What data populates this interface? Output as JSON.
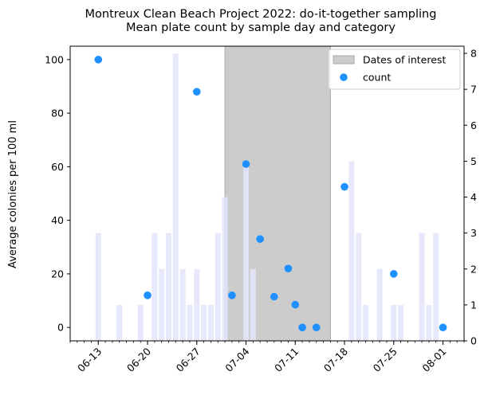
{
  "chart_data": {
    "type": "scatter",
    "title": "Montreux Clean Beach Project 2022: do-it-together sampling",
    "subtitle": "Mean plate count by sample day and category",
    "ylabel": "Average colonies per 100 ml",
    "xlabel": "",
    "x_tick_labels": [
      "06-13",
      "06-20",
      "06-27",
      "07-04",
      "07-11",
      "07-18",
      "07-25",
      "08-01"
    ],
    "x_tick_dates": [
      "2022-06-13",
      "2022-06-20",
      "2022-06-27",
      "2022-07-04",
      "2022-07-11",
      "2022-07-18",
      "2022-07-25",
      "2022-08-01"
    ],
    "xlim": [
      "2022-06-09",
      "2022-08-04"
    ],
    "ylim": [
      -5,
      105
    ],
    "y_ticks": [
      0,
      20,
      40,
      60,
      80,
      100
    ],
    "y2lim": [
      0,
      8.2
    ],
    "y2_ticks": [
      0,
      1,
      2,
      3,
      4,
      5,
      6,
      7,
      8
    ],
    "shaded_region": {
      "label": "Dates of interest",
      "start": "2022-07-01",
      "end": "2022-07-16",
      "color": "#cccccc"
    },
    "legend_position": "top-right",
    "legend_entries": [
      "Dates of interest",
      "count"
    ],
    "series": [
      {
        "name": "count",
        "kind": "scatter",
        "axis": "left",
        "color": "#1e90ff",
        "points": [
          {
            "x": "2022-06-13",
            "y": 100
          },
          {
            "x": "2022-06-20",
            "y": 12
          },
          {
            "x": "2022-06-27",
            "y": 88
          },
          {
            "x": "2022-07-02",
            "y": 12
          },
          {
            "x": "2022-07-04",
            "y": 61
          },
          {
            "x": "2022-07-06",
            "y": 33
          },
          {
            "x": "2022-07-08",
            "y": 11.5
          },
          {
            "x": "2022-07-10",
            "y": 22
          },
          {
            "x": "2022-07-11",
            "y": 8.5
          },
          {
            "x": "2022-07-12",
            "y": 0
          },
          {
            "x": "2022-07-14",
            "y": 0
          },
          {
            "x": "2022-07-18",
            "y": 52.5
          },
          {
            "x": "2022-07-25",
            "y": 20
          },
          {
            "x": "2022-08-01",
            "y": 0
          }
        ]
      },
      {
        "name": "",
        "kind": "bar",
        "axis": "right",
        "color": "#e4e4fb",
        "points": [
          {
            "x": "2022-06-13",
            "y": 3
          },
          {
            "x": "2022-06-16",
            "y": 1
          },
          {
            "x": "2022-06-19",
            "y": 1
          },
          {
            "x": "2022-06-21",
            "y": 3
          },
          {
            "x": "2022-06-22",
            "y": 2
          },
          {
            "x": "2022-06-23",
            "y": 3
          },
          {
            "x": "2022-06-24",
            "y": 8
          },
          {
            "x": "2022-06-25",
            "y": 2
          },
          {
            "x": "2022-06-26",
            "y": 1
          },
          {
            "x": "2022-06-27",
            "y": 2
          },
          {
            "x": "2022-06-28",
            "y": 1
          },
          {
            "x": "2022-06-29",
            "y": 1
          },
          {
            "x": "2022-06-30",
            "y": 3
          },
          {
            "x": "2022-07-01",
            "y": 4
          },
          {
            "x": "2022-07-04",
            "y": 5
          },
          {
            "x": "2022-07-05",
            "y": 2
          },
          {
            "x": "2022-07-19",
            "y": 5
          },
          {
            "x": "2022-07-20",
            "y": 3
          },
          {
            "x": "2022-07-21",
            "y": 1
          },
          {
            "x": "2022-07-23",
            "y": 2
          },
          {
            "x": "2022-07-25",
            "y": 1
          },
          {
            "x": "2022-07-26",
            "y": 1
          },
          {
            "x": "2022-07-29",
            "y": 3
          },
          {
            "x": "2022-07-30",
            "y": 1
          },
          {
            "x": "2022-07-31",
            "y": 3
          }
        ]
      }
    ]
  }
}
